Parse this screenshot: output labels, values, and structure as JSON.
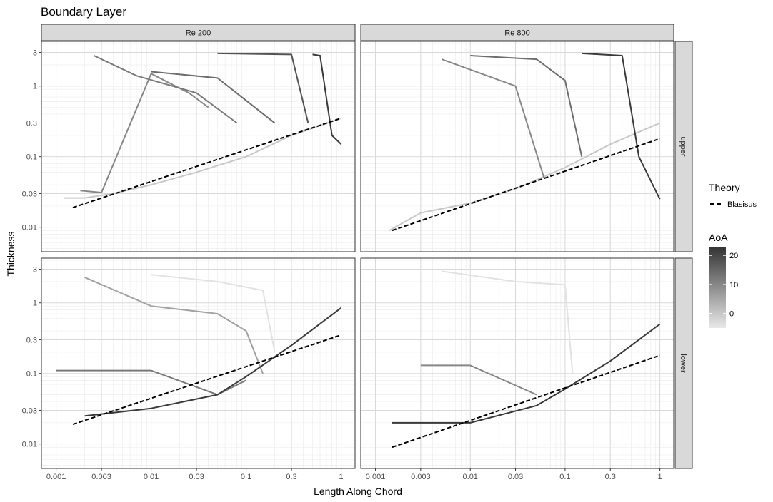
{
  "chart_data": {
    "type": "line",
    "title": "Boundary Layer",
    "xlabel": "Length Along Chord",
    "ylabel": "Thickness",
    "x_scale": "log",
    "y_scale": "log",
    "xlim": [
      0.001,
      1
    ],
    "ylim": [
      0.005,
      4
    ],
    "x_ticks": [
      0.001,
      0.003,
      0.01,
      0.03,
      0.1,
      0.3,
      1
    ],
    "x_tick_labels": [
      "0.001",
      "0.003",
      "0.01",
      "0.03",
      "0.1",
      "0.3",
      "1"
    ],
    "y_ticks": [
      0.01,
      0.03,
      0.1,
      0.3,
      1,
      3
    ],
    "y_tick_labels": [
      "0.01",
      "0.03",
      "0.1",
      "0.3",
      "1",
      "3"
    ],
    "grid": true,
    "facet_columns": [
      "Re 200",
      "Re 800"
    ],
    "facet_rows": [
      "upper",
      "lower"
    ],
    "legend_theory": {
      "title": "Theory",
      "entries": [
        "Blasisus"
      ]
    },
    "legend_aoa": {
      "title": "AoA",
      "ticks": [
        0,
        10,
        20
      ],
      "tick_labels": [
        "0",
        "10",
        "20"
      ],
      "range": [
        -5,
        23
      ]
    },
    "theory_lines": [
      {
        "facet": "Re 200 / upper",
        "x": [
          0.0015,
          1
        ],
        "y": [
          0.019,
          0.35
        ]
      },
      {
        "facet": "Re 800 / upper",
        "x": [
          0.0015,
          1
        ],
        "y": [
          0.009,
          0.18
        ]
      },
      {
        "facet": "Re 200 / lower",
        "x": [
          0.0015,
          1
        ],
        "y": [
          0.019,
          0.35
        ]
      },
      {
        "facet": "Re 800 / lower",
        "x": [
          0.0015,
          1
        ],
        "y": [
          0.009,
          0.18
        ]
      }
    ],
    "series": [
      {
        "facet": "Re 200 / upper",
        "aoa": 0,
        "x": [
          0.0012,
          0.002,
          0.004,
          0.01,
          0.03,
          0.1,
          0.3,
          1
        ],
        "y": [
          0.026,
          0.026,
          0.03,
          0.04,
          0.06,
          0.1,
          0.2,
          0.35
        ]
      },
      {
        "facet": "Re 200 / upper",
        "aoa": 10,
        "x": [
          0.0018,
          0.003,
          0.01,
          0.025,
          0.04
        ],
        "y": [
          0.033,
          0.031,
          1.5,
          0.8,
          0.5
        ]
      },
      {
        "facet": "Re 200 / upper",
        "aoa": 12,
        "x": [
          0.0025,
          0.007,
          0.03,
          0.08
        ],
        "y": [
          2.7,
          1.4,
          0.8,
          0.3
        ]
      },
      {
        "facet": "Re 200 / upper",
        "aoa": 14,
        "x": [
          0.01,
          0.05,
          0.2
        ],
        "y": [
          1.6,
          1.3,
          0.3
        ]
      },
      {
        "facet": "Re 200 / upper",
        "aoa": 18,
        "x": [
          0.05,
          0.3,
          0.45
        ],
        "y": [
          2.9,
          2.8,
          0.3
        ]
      },
      {
        "facet": "Re 200 / upper",
        "aoa": 22,
        "x": [
          0.5,
          0.6,
          0.8,
          1
        ],
        "y": [
          2.8,
          2.7,
          0.2,
          0.15
        ]
      },
      {
        "facet": "Re 800 / upper",
        "aoa": 0,
        "x": [
          0.0014,
          0.003,
          0.01,
          0.03,
          0.1,
          0.3,
          1
        ],
        "y": [
          0.009,
          0.016,
          0.022,
          0.035,
          0.07,
          0.15,
          0.3
        ]
      },
      {
        "facet": "Re 800 / upper",
        "aoa": 10,
        "x": [
          0.005,
          0.03,
          0.06
        ],
        "y": [
          2.4,
          1.0,
          0.05
        ]
      },
      {
        "facet": "Re 800 / upper",
        "aoa": 14,
        "x": [
          0.01,
          0.05,
          0.1,
          0.15
        ],
        "y": [
          2.7,
          2.4,
          1.2,
          0.1
        ]
      },
      {
        "facet": "Re 800 / upper",
        "aoa": 22,
        "x": [
          0.15,
          0.4,
          0.6,
          1
        ],
        "y": [
          2.9,
          2.7,
          0.1,
          0.025
        ]
      },
      {
        "facet": "Re 200 / lower",
        "aoa": -4,
        "x": [
          0.01,
          0.05,
          0.15,
          0.2
        ],
        "y": [
          2.5,
          2.0,
          1.5,
          0.2
        ]
      },
      {
        "facet": "Re 200 / lower",
        "aoa": 6,
        "x": [
          0.002,
          0.01,
          0.05,
          0.1,
          0.15
        ],
        "y": [
          2.3,
          0.9,
          0.7,
          0.4,
          0.1
        ]
      },
      {
        "facet": "Re 200 / lower",
        "aoa": 12,
        "x": [
          0.001,
          0.01,
          0.05,
          0.1
        ],
        "y": [
          0.11,
          0.11,
          0.05,
          0.08
        ]
      },
      {
        "facet": "Re 200 / lower",
        "aoa": 22,
        "x": [
          0.002,
          0.01,
          0.05,
          0.1,
          0.3,
          1
        ],
        "y": [
          0.025,
          0.032,
          0.05,
          0.09,
          0.25,
          0.85
        ]
      },
      {
        "facet": "Re 800 / lower",
        "aoa": -4,
        "x": [
          0.005,
          0.03,
          0.1,
          0.12
        ],
        "y": [
          2.8,
          2.0,
          1.8,
          0.1
        ]
      },
      {
        "facet": "Re 800 / lower",
        "aoa": 10,
        "x": [
          0.003,
          0.01,
          0.05
        ],
        "y": [
          0.13,
          0.13,
          0.05
        ]
      },
      {
        "facet": "Re 800 / lower",
        "aoa": 22,
        "x": [
          0.0015,
          0.01,
          0.05,
          0.1,
          0.3,
          1
        ],
        "y": [
          0.02,
          0.02,
          0.035,
          0.06,
          0.15,
          0.5
        ]
      }
    ]
  }
}
